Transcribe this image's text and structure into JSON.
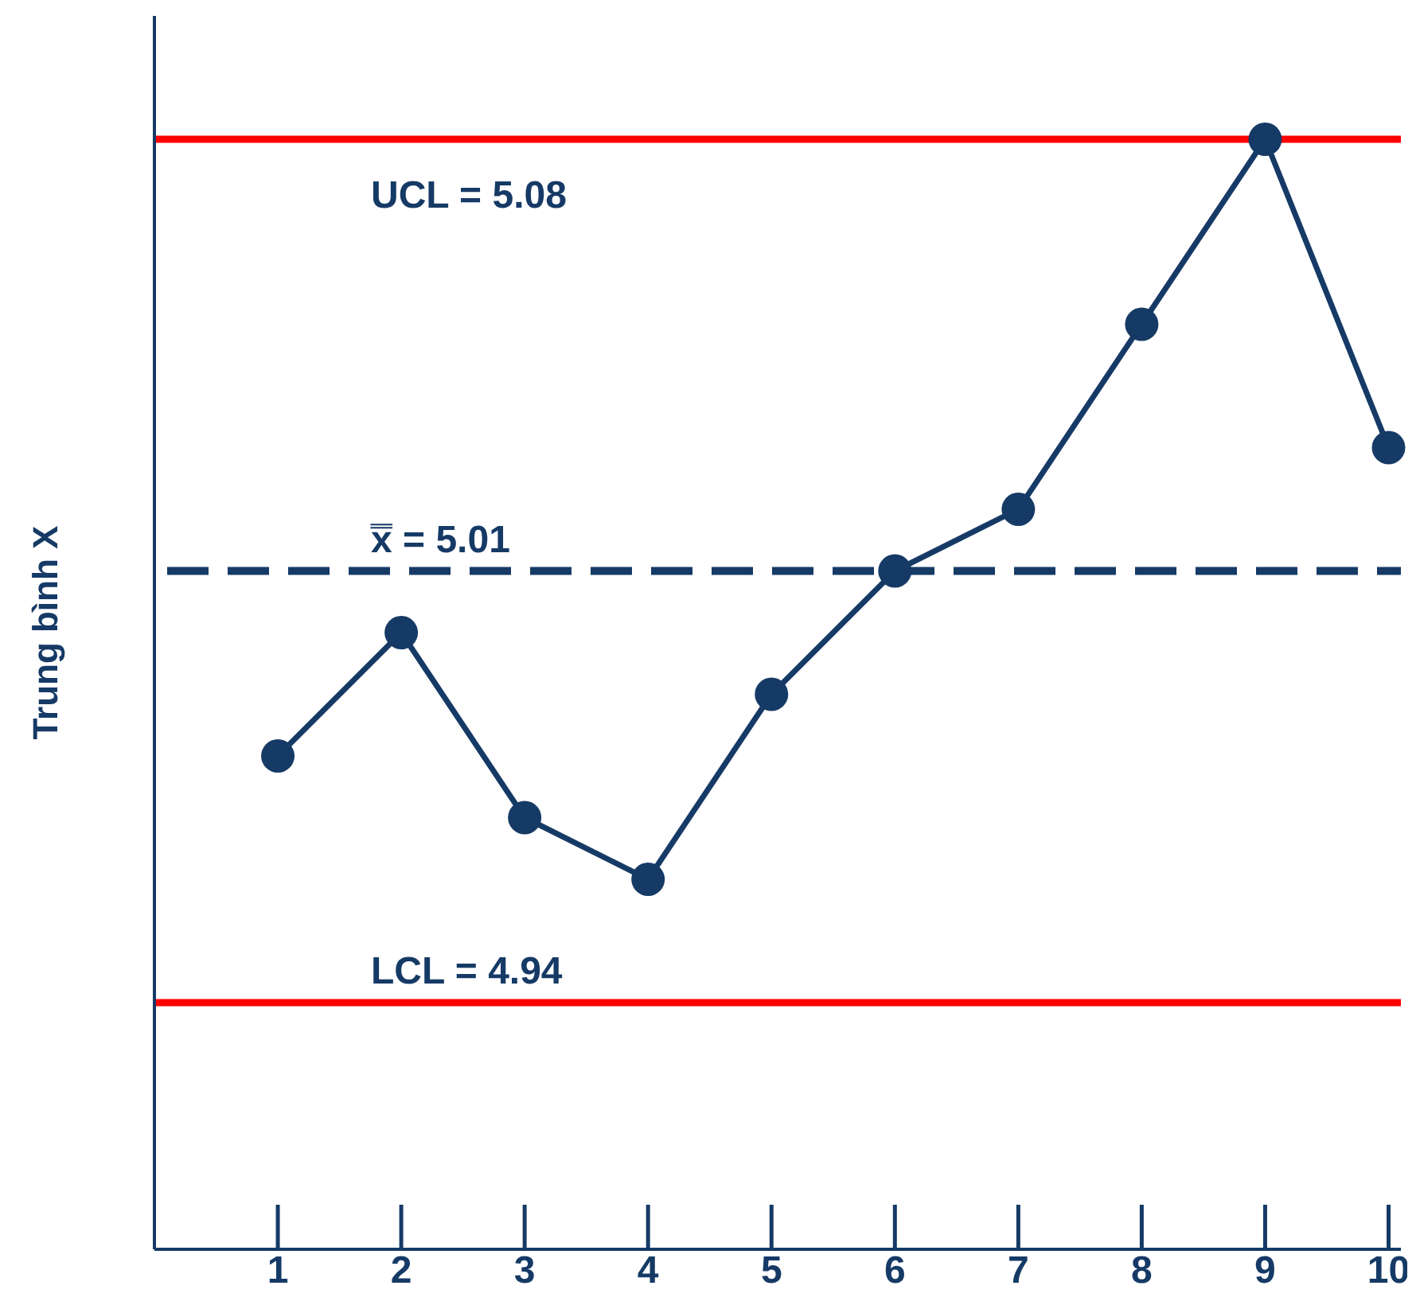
{
  "chart_data": {
    "type": "line",
    "ylabel": "Trung bình X",
    "x": [
      1,
      2,
      3,
      4,
      5,
      6,
      7,
      8,
      9,
      10
    ],
    "xlim": [
      0,
      10.1
    ],
    "xticks": [
      1,
      2,
      3,
      4,
      5,
      6,
      7,
      8,
      9,
      10
    ],
    "ylim": [
      4.9,
      5.1
    ],
    "tick_labels": "x",
    "marker": "circle",
    "line_style": "solid",
    "series": [
      {
        "color": "#163a66",
        "values": [
          4.98,
          5.0,
          4.97,
          4.96,
          4.99,
          5.01,
          5.02,
          5.05,
          5.08,
          5.03
        ]
      }
    ],
    "ref_lines": [
      {
        "axis": "y",
        "value": 5.08,
        "label": "UCL = 5.08",
        "color": "#ff0000",
        "line_style": "solid"
      },
      {
        "axis": "y",
        "value": 5.01,
        "label": "x̿ = 5.01",
        "color": "#163a66",
        "line_style": "dashed"
      },
      {
        "axis": "y",
        "value": 4.94,
        "label": "LCL = 4.94",
        "color": "#ff0000",
        "line_style": "solid"
      }
    ]
  }
}
